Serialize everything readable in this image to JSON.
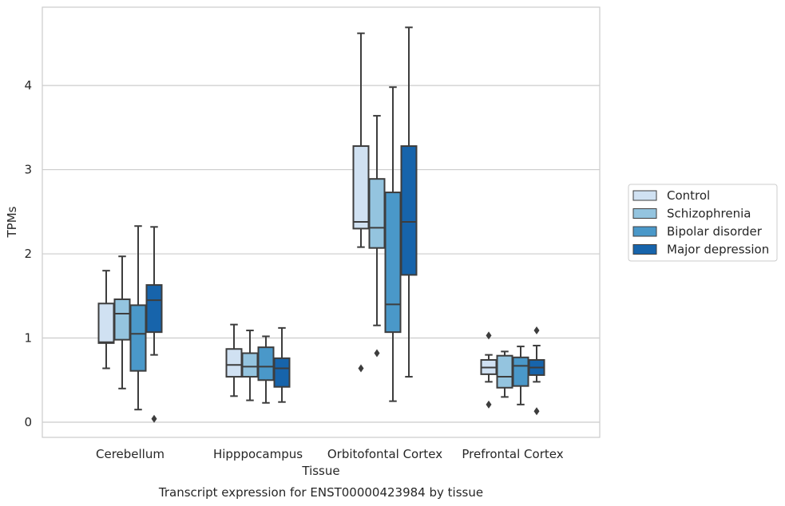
{
  "chart_data": {
    "type": "box",
    "title": "",
    "caption": "Transcript expression for ENST00000423984 by tissue",
    "xlabel": "Tissue",
    "ylabel": "TPMs",
    "ylim": [
      -0.18,
      4.93
    ],
    "yticks": [
      0,
      1,
      2,
      3,
      4
    ],
    "grid": "horizontal",
    "legend_position": "right",
    "categories": [
      "Cerebellum",
      "Hipppocampus",
      "Orbitofontal Cortex",
      "Prefrontal Cortex"
    ],
    "series": [
      {
        "name": "Control",
        "color": "#d0e1f2",
        "boxes": [
          {
            "whislo": 0.64,
            "q1": 0.94,
            "med": 0.95,
            "q3": 1.41,
            "whishi": 1.8,
            "fliers": []
          },
          {
            "whislo": 0.31,
            "q1": 0.54,
            "med": 0.68,
            "q3": 0.87,
            "whishi": 1.16,
            "fliers": []
          },
          {
            "whislo": 2.08,
            "q1": 2.3,
            "med": 2.38,
            "q3": 3.28,
            "whishi": 4.62,
            "fliers": [
              0.64
            ]
          },
          {
            "whislo": 0.48,
            "q1": 0.57,
            "med": 0.65,
            "q3": 0.74,
            "whishi": 0.8,
            "fliers": [
              1.03,
              0.21
            ]
          }
        ]
      },
      {
        "name": "Schizophrenia",
        "color": "#94c4df",
        "boxes": [
          {
            "whislo": 0.4,
            "q1": 0.98,
            "med": 1.29,
            "q3": 1.46,
            "whishi": 1.97,
            "fliers": []
          },
          {
            "whislo": 0.26,
            "q1": 0.54,
            "med": 0.66,
            "q3": 0.82,
            "whishi": 1.09,
            "fliers": []
          },
          {
            "whislo": 1.15,
            "q1": 2.07,
            "med": 2.31,
            "q3": 2.89,
            "whishi": 3.64,
            "fliers": [
              0.82
            ]
          },
          {
            "whislo": 0.3,
            "q1": 0.41,
            "med": 0.54,
            "q3": 0.79,
            "whishi": 0.84,
            "fliers": []
          }
        ]
      },
      {
        "name": "Bipolar disorder",
        "color": "#4a98c9",
        "boxes": [
          {
            "whislo": 0.15,
            "q1": 0.61,
            "med": 1.05,
            "q3": 1.39,
            "whishi": 2.33,
            "fliers": []
          },
          {
            "whislo": 0.23,
            "q1": 0.5,
            "med": 0.66,
            "q3": 0.89,
            "whishi": 1.02,
            "fliers": []
          },
          {
            "whislo": 0.25,
            "q1": 1.07,
            "med": 1.4,
            "q3": 2.73,
            "whishi": 3.98,
            "fliers": []
          },
          {
            "whislo": 0.21,
            "q1": 0.43,
            "med": 0.67,
            "q3": 0.77,
            "whishi": 0.9,
            "fliers": []
          }
        ]
      },
      {
        "name": "Major depression",
        "color": "#1764ab",
        "boxes": [
          {
            "whislo": 0.8,
            "q1": 1.07,
            "med": 1.45,
            "q3": 1.63,
            "whishi": 2.32,
            "fliers": [
              0.04
            ]
          },
          {
            "whislo": 0.24,
            "q1": 0.42,
            "med": 0.64,
            "q3": 0.76,
            "whishi": 1.12,
            "fliers": []
          },
          {
            "whislo": 0.54,
            "q1": 1.75,
            "med": 2.38,
            "q3": 3.28,
            "whishi": 4.69,
            "fliers": []
          },
          {
            "whislo": 0.48,
            "q1": 0.56,
            "med": 0.65,
            "q3": 0.74,
            "whishi": 0.91,
            "fliers": [
              1.09,
              0.13
            ]
          }
        ]
      }
    ]
  }
}
